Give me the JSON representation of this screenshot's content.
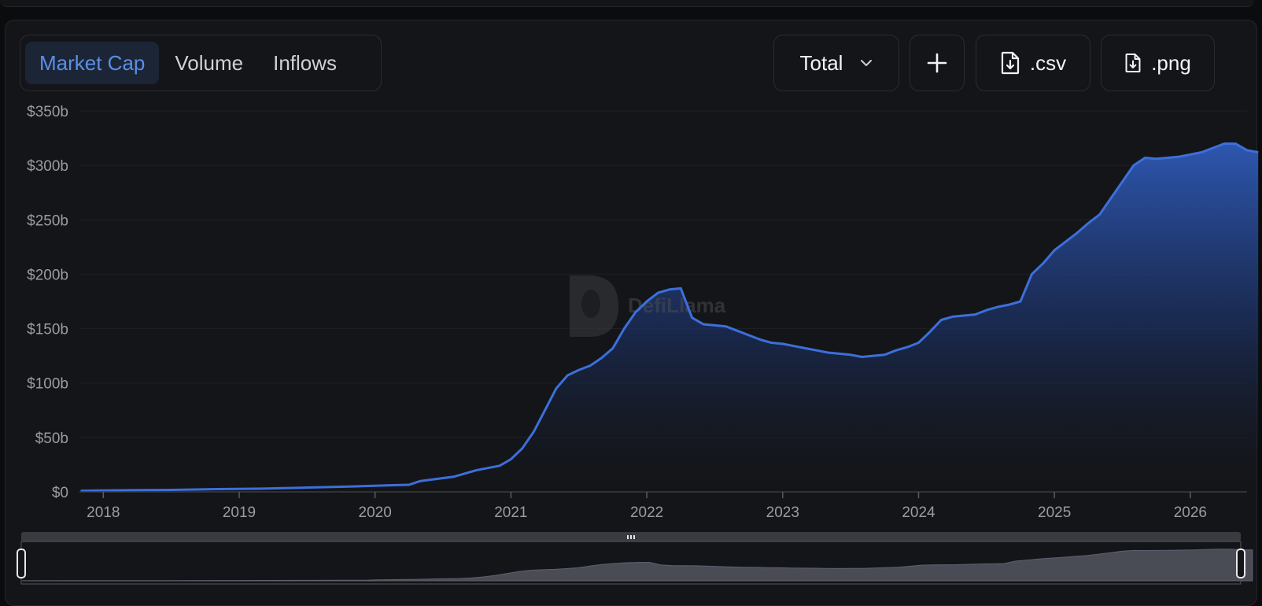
{
  "tabs": [
    {
      "label": "Market Cap",
      "active": true
    },
    {
      "label": "Volume",
      "active": false
    },
    {
      "label": "Inflows",
      "active": false
    }
  ],
  "controls": {
    "group_select_label": "Total",
    "add_icon": "plus-icon",
    "csv_label": ".csv",
    "png_label": ".png",
    "file_icon": "file-download-icon"
  },
  "watermark": "DefiLlama",
  "colors": {
    "line": "#3d6fdb",
    "fill_top": "#2f5ab8",
    "active_tab_text": "#5b8fe6",
    "axis_text": "#9a9ca1"
  },
  "chart_data": {
    "type": "area",
    "title": "",
    "xlabel": "",
    "ylabel": "",
    "ylim": [
      0,
      350
    ],
    "y_unit": "billions USD",
    "y_ticks": [
      "$0",
      "$50b",
      "$100b",
      "$150b",
      "$200b",
      "$250b",
      "$300b",
      "$350b"
    ],
    "x_ticks": [
      "2018",
      "2019",
      "2020",
      "2021",
      "2022",
      "2023",
      "2024",
      "2025",
      "2026"
    ],
    "xlim": [
      "2017-11",
      "2026-07"
    ],
    "grid": true,
    "legend": "none",
    "series": [
      {
        "x": [
          "2017-11",
          "2018-03",
          "2018-07",
          "2018-11",
          "2019-03",
          "2019-07",
          "2019-11",
          "2020-02",
          "2020-04",
          "2020-05",
          "2020-08",
          "2020-10",
          "2020-12",
          "2021-01",
          "2021-02",
          "2021-03",
          "2021-04",
          "2021-05",
          "2021-06",
          "2021-07",
          "2021-08",
          "2021-09",
          "2021-10",
          "2021-11",
          "2021-12",
          "2022-01",
          "2022-02",
          "2022-03",
          "2022-04",
          "2022-05",
          "2022-06",
          "2022-07",
          "2022-08",
          "2022-09",
          "2022-10",
          "2022-11",
          "2022-12",
          "2023-01",
          "2023-02",
          "2023-03",
          "2023-04",
          "2023-05",
          "2023-06",
          "2023-07",
          "2023-08",
          "2023-09",
          "2023-10",
          "2023-11",
          "2023-12",
          "2024-01",
          "2024-02",
          "2024-03",
          "2024-04",
          "2024-05",
          "2024-06",
          "2024-07",
          "2024-08",
          "2024-09",
          "2024-10",
          "2024-11",
          "2024-12",
          "2025-01",
          "2025-02",
          "2025-03",
          "2025-04",
          "2025-05",
          "2025-06",
          "2025-07",
          "2025-08",
          "2025-09",
          "2025-10",
          "2025-11",
          "2025-12",
          "2026-01",
          "2026-02",
          "2026-03",
          "2026-04",
          "2026-05",
          "2026-06",
          "2026-07"
        ],
        "values": [
          1,
          1.5,
          1.8,
          2.5,
          3,
          4,
          5,
          6,
          6.5,
          10,
          14,
          20,
          24,
          30,
          40,
          55,
          75,
          95,
          107,
          112,
          116,
          123,
          132,
          150,
          165,
          175,
          183,
          186,
          187,
          160,
          154,
          153,
          152,
          148,
          144,
          140,
          137,
          136,
          134,
          132,
          130,
          128,
          127,
          126,
          124,
          125,
          126,
          130,
          133,
          137,
          147,
          158,
          161,
          162,
          163,
          167,
          170,
          172,
          175,
          200,
          210,
          222,
          230,
          238,
          247,
          255,
          270,
          285,
          300,
          307,
          306,
          307,
          308,
          310,
          312,
          316,
          320,
          320,
          314,
          312
        ]
      }
    ]
  }
}
